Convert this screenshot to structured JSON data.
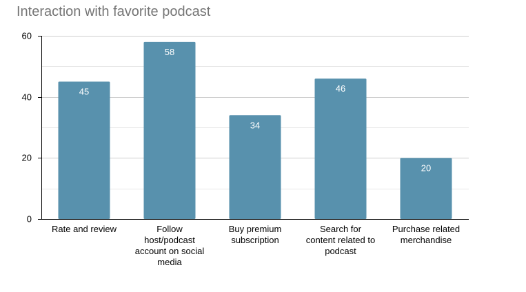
{
  "chart_data": {
    "type": "bar",
    "title": "Interaction with favorite podcast",
    "categories": [
      "Rate and review",
      "Follow host/podcast account on social media",
      "Buy premium subscription",
      "Search for content related to podcast",
      "Purchase related merchandise"
    ],
    "category_lines": [
      [
        "Rate and review"
      ],
      [
        "Follow",
        "host/podcast",
        "account on social",
        "media"
      ],
      [
        "Buy premium",
        "subscription"
      ],
      [
        "Search for",
        "content related to",
        "podcast"
      ],
      [
        "Purchase related",
        "merchandise"
      ]
    ],
    "values": [
      45,
      58,
      34,
      46,
      20
    ],
    "data_labels": [
      "45",
      "58",
      "34",
      "46",
      "20"
    ],
    "ylim": [
      0,
      60
    ],
    "yticks": [
      0,
      20,
      40,
      60
    ],
    "minor_gridlines": true,
    "xlabel": "",
    "ylabel": "",
    "legend": "none",
    "colors": {
      "bar": "#5891ad",
      "title": "#757575",
      "gridline": "#cccccc",
      "minor_gridline": "#e6e6e6",
      "data_label": "#ffffff"
    }
  }
}
